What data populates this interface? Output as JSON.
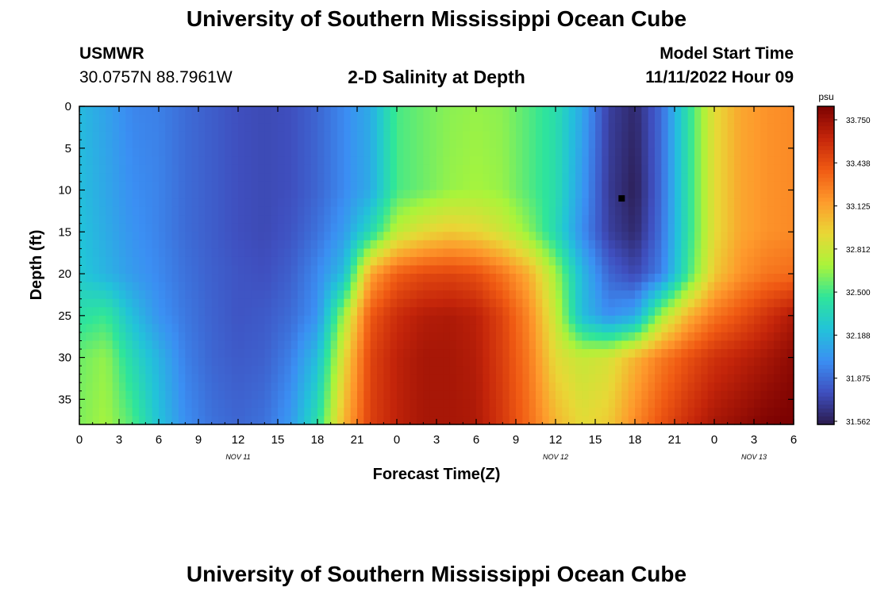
{
  "header": {
    "title": "University of Southern Mississippi Ocean Cube",
    "station": "USMWR",
    "coords": "30.0757N  88.7961W",
    "subtitle": "2-D Salinity at Depth",
    "model_start_label": "Model Start Time",
    "model_start_value": "11/11/2022 Hour 09"
  },
  "footer": {
    "title": "University of Southern Mississippi Ocean Cube"
  },
  "chart_data": {
    "type": "heatmap",
    "title": "2-D Salinity at Depth",
    "xlabel": "Forecast Time(Z)",
    "ylabel": "Depth (ft)",
    "x_tick_labels": [
      "0",
      "3",
      "6",
      "9",
      "12",
      "15",
      "18",
      "21",
      "0",
      "3",
      "6",
      "9",
      "12",
      "15",
      "18",
      "21",
      "0",
      "3",
      "6"
    ],
    "x_day_labels": [
      {
        "label": "NOV 11",
        "hour_index": 12
      },
      {
        "label": "NOV 12",
        "hour_index": 36
      },
      {
        "label": "NOV 13",
        "hour_index": 51
      }
    ],
    "x_range_hours": [
      0,
      54
    ],
    "y_tick_labels": [
      "0",
      "5",
      "10",
      "15",
      "20",
      "25",
      "30",
      "35"
    ],
    "y_range_ft": [
      0,
      38
    ],
    "y_inverted": true,
    "colorbar": {
      "unit": "psu",
      "ticks": [
        "33.750",
        "33.438",
        "33.125",
        "32.812",
        "32.500",
        "32.188",
        "31.875",
        "31.562"
      ],
      "min": 31.562,
      "max": 33.75,
      "colors": [
        "#2b1b4e",
        "#3f4fbf",
        "#3b8ff3",
        "#22c3d9",
        "#2fe59a",
        "#aaf43a",
        "#e9d736",
        "#fe9a2c",
        "#f05a13",
        "#c4250a",
        "#7c0202"
      ]
    },
    "marker": {
      "hour": 41,
      "depth_ft": 11
    },
    "sample_hours": [
      0,
      2,
      4,
      6,
      8,
      10,
      12,
      14,
      16,
      18,
      20,
      22,
      24,
      26,
      28,
      30,
      32,
      34,
      36,
      38,
      40,
      42,
      44,
      46,
      48,
      50,
      52,
      54
    ],
    "depth_rows": [
      {
        "depth_ft": 0,
        "salinity": [
          32.18,
          32.08,
          31.97,
          31.95,
          31.88,
          31.83,
          31.78,
          31.76,
          31.78,
          31.86,
          31.98,
          32.12,
          32.48,
          32.55,
          32.6,
          32.62,
          32.6,
          32.5,
          32.38,
          32.1,
          31.72,
          31.62,
          31.88,
          32.4,
          32.85,
          33.05,
          33.12,
          33.15
        ]
      },
      {
        "depth_ft": 10,
        "salinity": [
          32.2,
          32.1,
          32.0,
          31.96,
          31.88,
          31.83,
          31.78,
          31.76,
          31.78,
          31.86,
          31.98,
          32.12,
          32.48,
          32.55,
          32.62,
          32.65,
          32.62,
          32.5,
          32.38,
          32.05,
          31.7,
          31.58,
          31.88,
          32.4,
          32.85,
          33.05,
          33.12,
          33.15
        ]
      },
      {
        "depth_ft": 15,
        "salinity": [
          32.22,
          32.12,
          32.02,
          31.96,
          31.88,
          31.83,
          31.78,
          31.76,
          31.8,
          31.9,
          32.05,
          32.35,
          32.72,
          32.85,
          32.92,
          32.88,
          32.78,
          32.6,
          32.35,
          32.0,
          31.72,
          31.62,
          31.9,
          32.4,
          32.85,
          33.05,
          33.12,
          33.15
        ]
      },
      {
        "depth_ft": 20,
        "salinity": [
          32.25,
          32.15,
          32.05,
          31.98,
          31.9,
          31.84,
          31.8,
          31.78,
          31.84,
          31.98,
          32.2,
          33.05,
          33.3,
          33.38,
          33.4,
          33.36,
          33.22,
          33.02,
          32.65,
          32.18,
          31.86,
          31.75,
          31.95,
          32.45,
          32.92,
          33.12,
          33.22,
          33.25
        ]
      },
      {
        "depth_ft": 25,
        "salinity": [
          32.4,
          32.45,
          32.2,
          32.02,
          31.92,
          31.85,
          31.8,
          31.82,
          31.88,
          32.02,
          32.65,
          33.32,
          33.5,
          33.58,
          33.6,
          33.56,
          33.4,
          33.15,
          32.75,
          32.2,
          32.0,
          32.1,
          32.65,
          33.0,
          33.22,
          33.35,
          33.48,
          33.6
        ]
      },
      {
        "depth_ft": 30,
        "salinity": [
          32.55,
          32.62,
          32.35,
          32.15,
          31.95,
          31.86,
          31.82,
          31.84,
          31.95,
          32.2,
          32.85,
          33.4,
          33.55,
          33.62,
          33.62,
          33.58,
          33.42,
          33.2,
          32.85,
          32.75,
          32.8,
          33.0,
          33.2,
          33.35,
          33.48,
          33.55,
          33.62,
          33.7
        ]
      },
      {
        "depth_ft": 38,
        "salinity": [
          32.58,
          32.65,
          32.5,
          32.22,
          32.0,
          31.9,
          31.86,
          31.9,
          32.05,
          32.4,
          33.0,
          33.42,
          33.55,
          33.62,
          33.62,
          33.6,
          33.45,
          33.25,
          33.0,
          32.85,
          32.92,
          33.15,
          33.35,
          33.5,
          33.62,
          33.68,
          33.74,
          33.76
        ]
      }
    ]
  }
}
